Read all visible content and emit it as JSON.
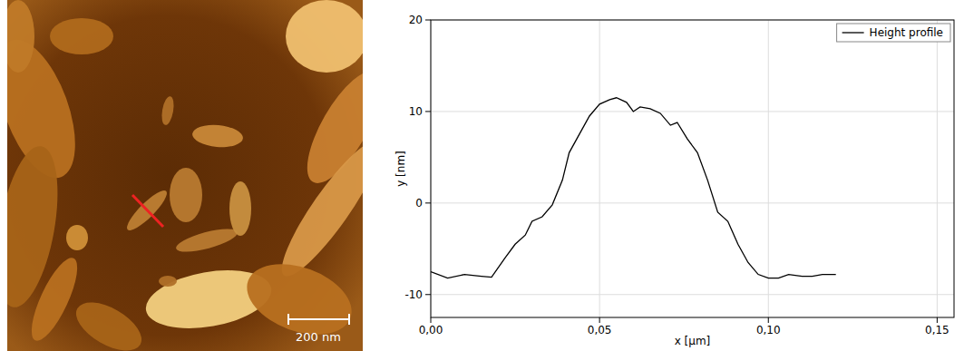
{
  "image": {
    "scale_bar_label": "200 nm"
  },
  "chart_data": {
    "type": "line",
    "x_label": "x [µm]",
    "y_label": "y [nm]",
    "x": [
      0.0,
      0.005,
      0.01,
      0.015,
      0.018,
      0.022,
      0.025,
      0.028,
      0.03,
      0.033,
      0.036,
      0.039,
      0.041,
      0.044,
      0.047,
      0.05,
      0.053,
      0.055,
      0.058,
      0.06,
      0.062,
      0.065,
      0.068,
      0.071,
      0.073,
      0.076,
      0.079,
      0.082,
      0.085,
      0.088,
      0.091,
      0.094,
      0.097,
      0.1,
      0.103,
      0.106,
      0.11,
      0.113,
      0.116,
      0.12
    ],
    "series": [
      {
        "name": "Height profile",
        "color": "#000000",
        "values": [
          -7.5,
          -8.2,
          -7.8,
          -8.0,
          -8.1,
          -6.0,
          -4.5,
          -3.5,
          -2.0,
          -1.5,
          -0.2,
          2.5,
          5.5,
          7.5,
          9.5,
          10.8,
          11.3,
          11.5,
          11.0,
          10.0,
          10.5,
          10.3,
          9.8,
          8.5,
          8.8,
          7.0,
          5.5,
          2.5,
          -1.0,
          -2.0,
          -4.5,
          -6.5,
          -7.8,
          -8.2,
          -8.2,
          -7.8,
          -8.0,
          -8.0,
          -7.8,
          -7.8
        ]
      }
    ],
    "xlim": [
      0,
      0.155
    ],
    "xticks": [
      {
        "value": 0,
        "label": "0,00"
      },
      {
        "value": 0.05,
        "label": "0,05"
      },
      {
        "value": 0.1,
        "label": "0,10"
      },
      {
        "value": 0.15,
        "label": "0,15"
      }
    ],
    "ylim": [
      -12.5,
      20
    ],
    "yticks": [
      -10,
      0,
      10,
      20
    ],
    "grid": true,
    "legend": "top-right"
  }
}
